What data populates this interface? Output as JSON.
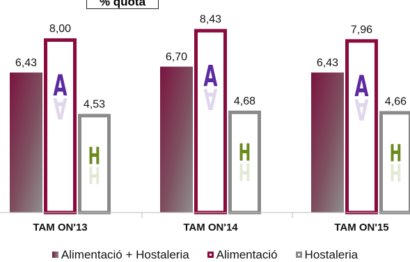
{
  "chart_data": {
    "type": "bar",
    "title": "% quota",
    "categories": [
      "TAM ON'13",
      "TAM ON'14",
      "TAM ON'15"
    ],
    "series": [
      {
        "name": "Alimentació + Hostaleria",
        "values": [
          6.43,
          6.7,
          6.43
        ],
        "labels": [
          "6,43",
          "6,70",
          "6,43"
        ],
        "color": "#8a0a3e"
      },
      {
        "name": "Alimentació",
        "values": [
          8.0,
          8.43,
          7.96
        ],
        "labels": [
          "8,00",
          "8,43",
          "7,96"
        ],
        "color": "#8a0a3e",
        "icon_letter": "A",
        "icon_color": "#5b2aa0"
      },
      {
        "name": "Hostaleria",
        "values": [
          4.53,
          4.68,
          4.66
        ],
        "labels": [
          "4,53",
          "4,68",
          "4,66"
        ],
        "color": "#8a8a8a",
        "icon_letter": "H",
        "icon_color": "#6a8a1e"
      }
    ],
    "ylim": [
      0,
      9
    ],
    "grid": false,
    "legend_position": "bottom"
  }
}
